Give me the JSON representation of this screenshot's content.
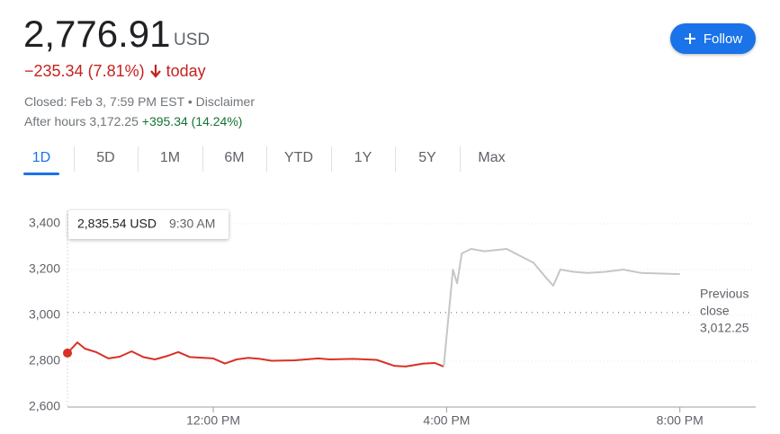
{
  "header": {
    "price": "2,776.91",
    "currency": "USD",
    "change": "−235.34 (7.81%)",
    "change_suffix": "today",
    "follow": "Follow",
    "closed": "Closed: Feb 3, 7:59 PM EST",
    "separator": "•",
    "disclaimer": "Disclaimer",
    "after_hours_label": "After hours",
    "after_hours_price": "3,172.25",
    "after_hours_change": "+395.34 (14.24%)"
  },
  "tabs": [
    "1D",
    "5D",
    "1M",
    "6M",
    "YTD",
    "1Y",
    "5Y",
    "Max"
  ],
  "chart_data": {
    "type": "line",
    "series": [
      {
        "color": "#d93025",
        "x": [
          9.5,
          9.67,
          9.8,
          10.0,
          10.2,
          10.4,
          10.6,
          10.8,
          11.0,
          11.2,
          11.4,
          11.6,
          12.0,
          12.2,
          12.4,
          12.6,
          12.8,
          13.0,
          13.4,
          13.8,
          14.0,
          14.4,
          14.8,
          15.1,
          15.3,
          15.6,
          15.8,
          15.95
        ],
        "values": [
          2835.54,
          2882,
          2855,
          2839,
          2812,
          2820,
          2843,
          2818,
          2808,
          2822,
          2840,
          2818,
          2812,
          2790,
          2808,
          2815,
          2810,
          2802,
          2804,
          2812,
          2808,
          2810,
          2806,
          2780,
          2777,
          2790,
          2792,
          2776.91
        ]
      },
      {
        "color": "#c4c7c5",
        "x": [
          15.95,
          16.11,
          16.18,
          16.26,
          16.42,
          16.65,
          17.03,
          17.18,
          17.49,
          17.72,
          17.83,
          17.95,
          18.18,
          18.42,
          18.72,
          19.03,
          19.34,
          20.0
        ],
        "values": [
          2776.91,
          3200,
          3140,
          3270,
          3290,
          3280,
          3290,
          3270,
          3230,
          3160,
          3130,
          3200,
          3190,
          3185,
          3190,
          3200,
          3185,
          3180
        ]
      }
    ],
    "xlim": [
      9.5,
      21.3
    ],
    "xticks": [
      {
        "value": 12,
        "label": "12:00 PM"
      },
      {
        "value": 16,
        "label": "4:00 PM"
      },
      {
        "value": 20,
        "label": "8:00 PM"
      }
    ],
    "ylim": [
      2600,
      3400
    ],
    "yticks": [
      {
        "value": 2600,
        "label": "2,600"
      },
      {
        "value": 2800,
        "label": "2,800"
      },
      {
        "value": 3000,
        "label": "3,000"
      },
      {
        "value": 3200,
        "label": "3,200"
      },
      {
        "value": 3400,
        "label": "3,400"
      }
    ],
    "grid": true,
    "reference_line": {
      "label_1": "Previous",
      "label_2": "close",
      "value": 3012.25,
      "value_label": "3,012.25"
    },
    "tooltip": {
      "value": 2835.54,
      "value_label": "2,835.54 USD",
      "time": "9:30 AM"
    }
  }
}
